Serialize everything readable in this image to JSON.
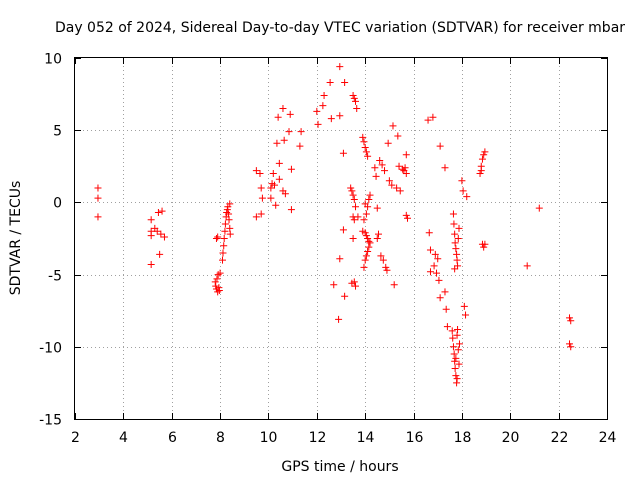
{
  "chart_data": {
    "type": "scatter",
    "title": "Day 052 of 2024, Sidereal Day-to-day VTEC variation (SDTVAR) for receiver mbar",
    "xlabel": "GPS time / hours",
    "ylabel": "SDTVAR / TECUs",
    "xlim": [
      2,
      24
    ],
    "ylim": [
      -15,
      10
    ],
    "xticks": [
      2,
      4,
      6,
      8,
      10,
      12,
      14,
      16,
      18,
      20,
      22,
      24
    ],
    "yticks": [
      -15,
      -10,
      -5,
      0,
      5,
      10
    ],
    "xtick_labels": [
      "2",
      "4",
      "6",
      "8",
      "10",
      "12",
      "14",
      "16",
      "18",
      "20",
      "22",
      "24"
    ],
    "ytick_labels": [
      "-15",
      "-10",
      "-5",
      "0",
      "5",
      "10"
    ],
    "grid": true,
    "marker": "+",
    "color": "#ff0000",
    "series": [
      {
        "name": "SDTVAR",
        "points": [
          [
            2.95,
            1.0
          ],
          [
            2.95,
            0.3
          ],
          [
            2.95,
            -1.0
          ],
          [
            5.15,
            -1.2
          ],
          [
            5.15,
            -2.0
          ],
          [
            5.15,
            -2.3
          ],
          [
            5.15,
            -4.3
          ],
          [
            5.3,
            -1.8
          ],
          [
            5.4,
            -2.0
          ],
          [
            5.45,
            -0.7
          ],
          [
            5.5,
            -3.6
          ],
          [
            5.55,
            -2.2
          ],
          [
            5.6,
            -0.6
          ],
          [
            5.7,
            -2.4
          ],
          [
            7.8,
            -5.5
          ],
          [
            7.82,
            -5.8
          ],
          [
            7.85,
            -6.0
          ],
          [
            7.87,
            -5.3
          ],
          [
            7.9,
            -6.2
          ],
          [
            7.92,
            -5.0
          ],
          [
            7.95,
            -5.9
          ],
          [
            7.97,
            -6.1
          ],
          [
            8.0,
            -4.9
          ],
          [
            7.85,
            -2.5
          ],
          [
            7.9,
            -2.4
          ],
          [
            8.1,
            -4.0
          ],
          [
            8.12,
            -3.5
          ],
          [
            8.15,
            -3.0
          ],
          [
            8.17,
            -2.5
          ],
          [
            8.2,
            -2.0
          ],
          [
            8.22,
            -1.5
          ],
          [
            8.25,
            -1.0
          ],
          [
            8.27,
            -0.7
          ],
          [
            8.3,
            -0.5
          ],
          [
            8.32,
            -0.3
          ],
          [
            8.35,
            -0.8
          ],
          [
            8.37,
            -1.2
          ],
          [
            8.4,
            -0.1
          ],
          [
            8.4,
            -1.8
          ],
          [
            8.42,
            -2.2
          ],
          [
            9.5,
            -1.0
          ],
          [
            9.5,
            2.2
          ],
          [
            9.65,
            2.0
          ],
          [
            9.7,
            1.0
          ],
          [
            9.7,
            -0.8
          ],
          [
            9.75,
            0.3
          ],
          [
            10.1,
            0.3
          ],
          [
            10.1,
            1.0
          ],
          [
            10.15,
            1.3
          ],
          [
            10.2,
            2.0
          ],
          [
            10.25,
            1.2
          ],
          [
            10.3,
            -0.2
          ],
          [
            10.35,
            4.1
          ],
          [
            10.4,
            5.9
          ],
          [
            10.45,
            1.6
          ],
          [
            10.45,
            2.7
          ],
          [
            10.6,
            0.8
          ],
          [
            10.6,
            6.5
          ],
          [
            10.65,
            4.3
          ],
          [
            10.7,
            0.6
          ],
          [
            10.85,
            4.9
          ],
          [
            10.9,
            6.1
          ],
          [
            10.95,
            -0.5
          ],
          [
            10.95,
            2.3
          ],
          [
            11.3,
            3.9
          ],
          [
            11.35,
            4.9
          ],
          [
            12.0,
            6.3
          ],
          [
            12.05,
            5.4
          ],
          [
            12.25,
            6.7
          ],
          [
            12.3,
            7.4
          ],
          [
            12.55,
            8.3
          ],
          [
            12.6,
            5.8
          ],
          [
            12.7,
            -5.7
          ],
          [
            12.9,
            -8.1
          ],
          [
            12.95,
            9.4
          ],
          [
            12.95,
            6.0
          ],
          [
            12.95,
            -3.9
          ],
          [
            13.1,
            3.4
          ],
          [
            13.1,
            -1.9
          ],
          [
            13.15,
            8.3
          ],
          [
            13.15,
            -6.5
          ],
          [
            13.4,
            1.0
          ],
          [
            13.45,
            0.8
          ],
          [
            13.5,
            0.5
          ],
          [
            13.55,
            0.2
          ],
          [
            13.6,
            -0.3
          ],
          [
            13.5,
            -1.0
          ],
          [
            13.55,
            -1.2
          ],
          [
            13.5,
            -2.5
          ],
          [
            13.55,
            -5.5
          ],
          [
            13.6,
            -5.8
          ],
          [
            13.45,
            -5.6
          ],
          [
            13.5,
            7.4
          ],
          [
            13.55,
            7.2
          ],
          [
            13.6,
            7.0
          ],
          [
            13.65,
            6.5
          ],
          [
            13.7,
            -1.0
          ],
          [
            13.9,
            4.5
          ],
          [
            13.95,
            4.2
          ],
          [
            14.0,
            3.8
          ],
          [
            14.05,
            3.5
          ],
          [
            14.1,
            3.2
          ],
          [
            14.0,
            -0.1
          ],
          [
            14.05,
            -0.8
          ],
          [
            14.1,
            -0.3
          ],
          [
            14.15,
            0.2
          ],
          [
            14.2,
            0.5
          ],
          [
            13.95,
            -1.2
          ],
          [
            14.0,
            -2.1
          ],
          [
            14.05,
            -2.3
          ],
          [
            14.1,
            -2.5
          ],
          [
            14.15,
            -2.7
          ],
          [
            13.95,
            -4.5
          ],
          [
            14.0,
            -4.0
          ],
          [
            14.05,
            -3.7
          ],
          [
            14.1,
            -3.4
          ],
          [
            14.15,
            -3.1
          ],
          [
            14.2,
            -2.8
          ],
          [
            13.9,
            -2.0
          ],
          [
            14.4,
            2.4
          ],
          [
            14.45,
            1.8
          ],
          [
            14.5,
            -0.4
          ],
          [
            14.5,
            -2.5
          ],
          [
            14.55,
            -2.2
          ],
          [
            14.6,
            2.9
          ],
          [
            14.65,
            -3.7
          ],
          [
            14.7,
            2.6
          ],
          [
            14.75,
            -4.0
          ],
          [
            14.8,
            2.2
          ],
          [
            14.85,
            -4.5
          ],
          [
            14.9,
            -4.7
          ],
          [
            14.95,
            4.1
          ],
          [
            15.0,
            1.5
          ],
          [
            15.1,
            1.2
          ],
          [
            15.15,
            5.3
          ],
          [
            15.2,
            -5.7
          ],
          [
            15.3,
            1.0
          ],
          [
            15.35,
            4.6
          ],
          [
            15.4,
            2.5
          ],
          [
            15.45,
            0.8
          ],
          [
            15.55,
            2.3
          ],
          [
            15.6,
            2.2
          ],
          [
            15.65,
            2.4
          ],
          [
            15.7,
            3.3
          ],
          [
            15.7,
            -0.9
          ],
          [
            15.75,
            -1.1
          ],
          [
            15.7,
            2.0
          ],
          [
            16.6,
            5.7
          ],
          [
            16.65,
            -2.1
          ],
          [
            16.7,
            -3.3
          ],
          [
            16.7,
            -4.8
          ],
          [
            16.8,
            5.9
          ],
          [
            16.85,
            -4.4
          ],
          [
            16.9,
            -3.6
          ],
          [
            16.95,
            -4.9
          ],
          [
            17.0,
            -3.9
          ],
          [
            17.05,
            -5.4
          ],
          [
            17.1,
            -6.6
          ],
          [
            17.1,
            3.9
          ],
          [
            17.3,
            2.4
          ],
          [
            17.3,
            -6.2
          ],
          [
            17.35,
            -7.4
          ],
          [
            17.4,
            -8.6
          ],
          [
            17.6,
            -8.9
          ],
          [
            17.62,
            -9.4
          ],
          [
            17.65,
            -10.0
          ],
          [
            17.68,
            -10.5
          ],
          [
            17.7,
            -11.0
          ],
          [
            17.72,
            -11.5
          ],
          [
            17.75,
            -12.0
          ],
          [
            17.78,
            -12.5
          ],
          [
            17.8,
            -9.2
          ],
          [
            17.82,
            -8.8
          ],
          [
            17.85,
            -10.2
          ],
          [
            17.88,
            -11.2
          ],
          [
            17.9,
            -9.8
          ],
          [
            17.75,
            -10.8
          ],
          [
            17.8,
            -12.2
          ],
          [
            17.65,
            -0.8
          ],
          [
            17.67,
            -1.5
          ],
          [
            17.7,
            -2.2
          ],
          [
            17.72,
            -2.8
          ],
          [
            17.75,
            -3.2
          ],
          [
            17.78,
            -3.6
          ],
          [
            17.8,
            -4.0
          ],
          [
            17.82,
            -4.4
          ],
          [
            17.85,
            -2.5
          ],
          [
            17.88,
            -1.8
          ],
          [
            17.7,
            -4.6
          ],
          [
            18.0,
            1.5
          ],
          [
            18.05,
            0.8
          ],
          [
            18.1,
            -7.2
          ],
          [
            18.15,
            -7.8
          ],
          [
            18.2,
            0.4
          ],
          [
            18.75,
            2.0
          ],
          [
            18.8,
            2.5
          ],
          [
            18.85,
            3.0
          ],
          [
            18.9,
            3.3
          ],
          [
            18.95,
            3.5
          ],
          [
            18.85,
            -2.9
          ],
          [
            18.9,
            -3.1
          ],
          [
            18.95,
            -2.9
          ],
          [
            18.8,
            2.2
          ],
          [
            20.7,
            -4.4
          ],
          [
            21.2,
            -0.4
          ],
          [
            22.45,
            -8.0
          ],
          [
            22.5,
            -8.2
          ],
          [
            22.45,
            -9.8
          ],
          [
            22.5,
            -10.0
          ]
        ]
      }
    ]
  }
}
